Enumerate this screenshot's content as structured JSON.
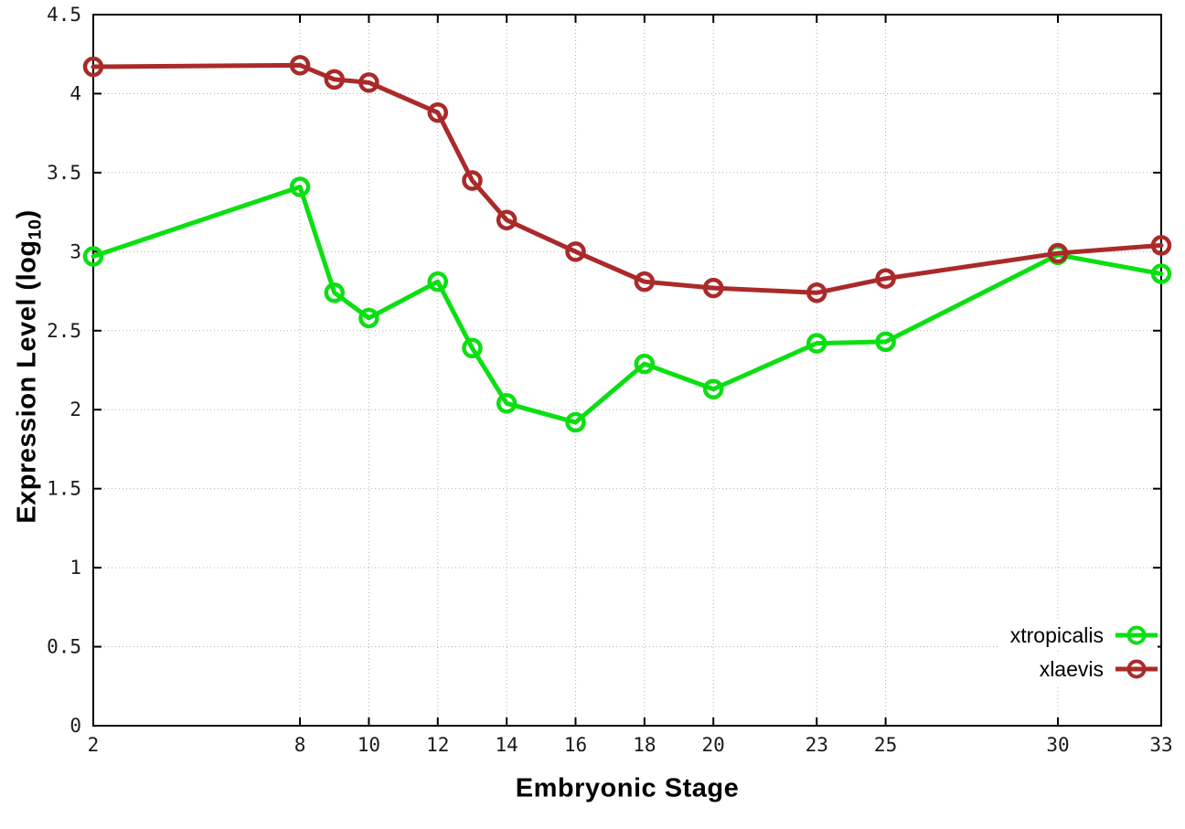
{
  "figure": {
    "xlabel": "Embryonic Stage",
    "ylabel_prefix": "Expression Level (log",
    "ylabel_sub": "10",
    "ylabel_suffix": ")"
  },
  "colors": {
    "background": "#ffffff",
    "axis": "#000000",
    "grid": "#b0b0b0",
    "xtropicalis": "#0bdf13",
    "xlaevis": "#aa2a2a"
  },
  "chart_data": {
    "type": "line",
    "title": "",
    "xlabel": "Embryonic Stage",
    "ylabel": "Expression Level (log10)",
    "x": [
      2,
      8,
      9,
      10,
      12,
      13,
      14,
      16,
      18,
      20,
      23,
      25,
      30,
      33
    ],
    "series": [
      {
        "name": "xtropicalis",
        "color": "#0bdf13",
        "values": [
          2.97,
          3.41,
          2.74,
          2.58,
          2.81,
          2.39,
          2.04,
          1.92,
          2.29,
          2.13,
          2.42,
          2.43,
          2.98,
          2.86
        ]
      },
      {
        "name": "xlaevis",
        "color": "#aa2a2a",
        "values": [
          4.17,
          4.18,
          4.09,
          4.07,
          3.88,
          3.45,
          3.2,
          3.0,
          2.81,
          2.77,
          2.74,
          2.83,
          2.99,
          3.04
        ]
      }
    ],
    "x_ticks": [
      2,
      8,
      10,
      12,
      14,
      16,
      18,
      20,
      23,
      25,
      30,
      33
    ],
    "y_ticks": [
      "0",
      "0.5",
      "1",
      "1.5",
      "2",
      "2.5",
      "3",
      "3.5",
      "4",
      "4.5"
    ],
    "xlim": [
      2,
      33
    ],
    "ylim": [
      0,
      4.5
    ],
    "grid": true,
    "marker": "open-circle",
    "legend_position": "bottom-right"
  }
}
